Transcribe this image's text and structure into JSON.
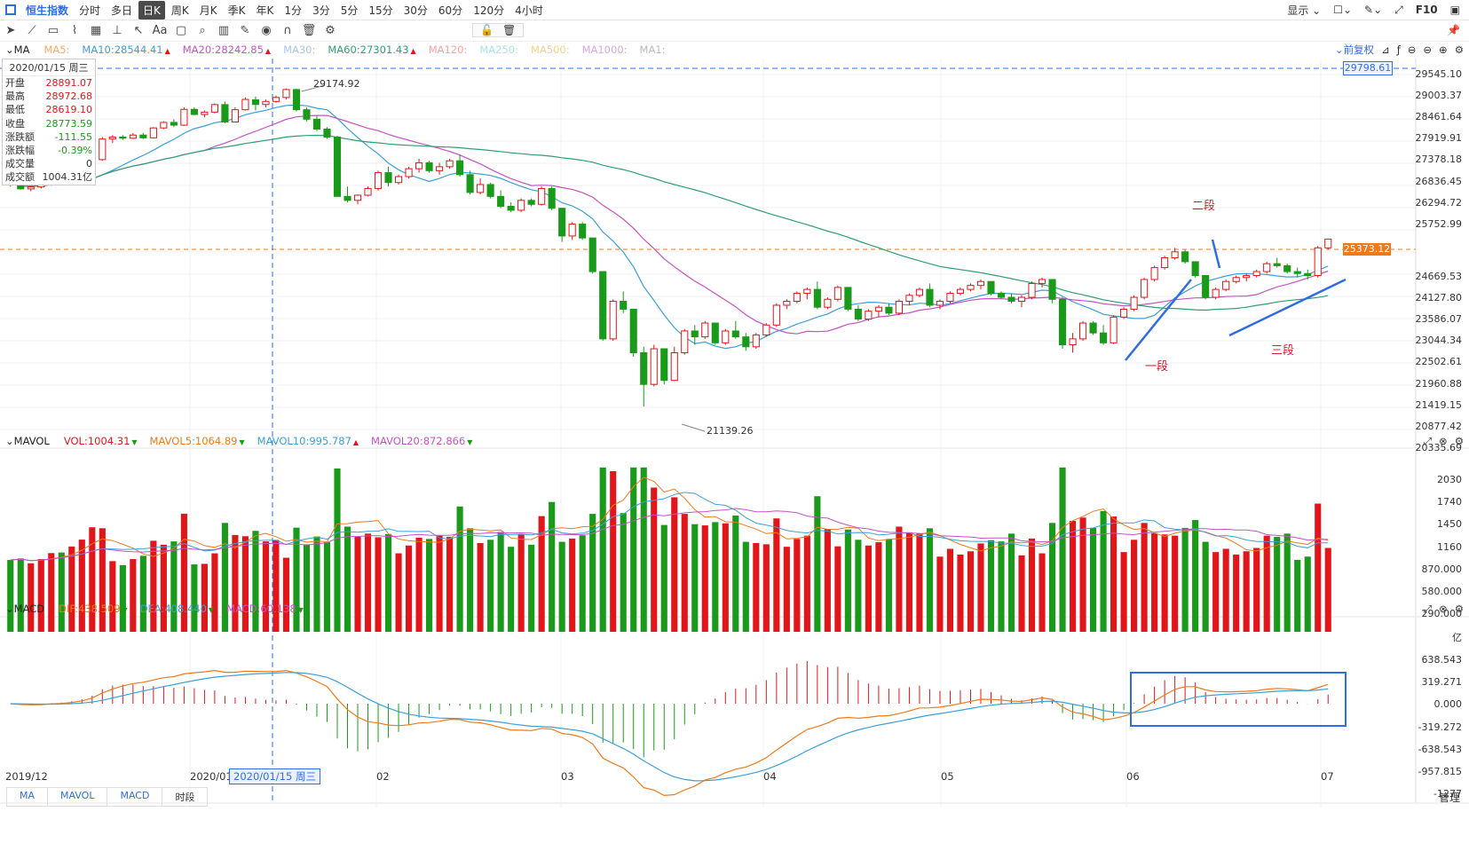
{
  "tabs": [
    {
      "label": "恒生指数",
      "active": false,
      "first": true
    },
    {
      "label": "分时"
    },
    {
      "label": "多日"
    },
    {
      "label": "日K",
      "active": true
    },
    {
      "label": "周K"
    },
    {
      "label": "月K"
    },
    {
      "label": "季K"
    },
    {
      "label": "年K"
    },
    {
      "label": "1分"
    },
    {
      "label": "3分"
    },
    {
      "label": "5分"
    },
    {
      "label": "15分"
    },
    {
      "label": "30分"
    },
    {
      "label": "60分"
    },
    {
      "label": "120分"
    },
    {
      "label": "4小时"
    }
  ],
  "topright": {
    "display": "显示",
    "f10": "F10"
  },
  "ma_legend": {
    "label": "MA",
    "items": [
      {
        "text": "MA5:",
        "color": "#f5a96a"
      },
      {
        "text": "MA10:28544.41",
        "color": "#3aa0d8",
        "arrow": "▲"
      },
      {
        "text": "MA20:28242.85",
        "color": "#c552c5",
        "arrow": "▲"
      },
      {
        "text": "MA30:",
        "color": "#a6c8ee"
      },
      {
        "text": "MA60:27301.43",
        "color": "#2e9e73",
        "arrow": "▲"
      },
      {
        "text": "MA120:",
        "color": "#f5a3a3"
      },
      {
        "text": "MA250:",
        "color": "#a6e6e6"
      },
      {
        "text": "MA500:",
        "color": "#f5d08a"
      },
      {
        "text": "MA1000:",
        "color": "#d9a6e6"
      },
      {
        "text": "MA1:",
        "color": "#bbbbbb"
      }
    ],
    "adjust": "前复权"
  },
  "info": {
    "date": "2020/01/15 周三",
    "rows": [
      {
        "k": "开盘",
        "v": "28891.07",
        "c": "#e0161b"
      },
      {
        "k": "最高",
        "v": "28972.68",
        "c": "#e0161b"
      },
      {
        "k": "最低",
        "v": "28619.10",
        "c": "#e0161b"
      },
      {
        "k": "收盘",
        "v": "28773.59",
        "c": "#1a9a1a"
      },
      {
        "k": "涨跌额",
        "v": "-111.55",
        "c": "#1a9a1a"
      },
      {
        "k": "涨跌幅",
        "v": "-0.39%",
        "c": "#1a9a1a"
      },
      {
        "k": "成交量",
        "v": "0",
        "c": "#333"
      },
      {
        "k": "成交额",
        "v": "1004.31亿",
        "c": "#333"
      }
    ]
  },
  "price_axis": [
    "29545.10",
    "29003.37",
    "28461.64",
    "27919.91",
    "27378.18",
    "26836.45",
    "26294.72",
    "25752.99",
    "24669.53",
    "24127.80",
    "23586.07",
    "23044.34",
    "22502.61",
    "21960.88",
    "21419.15",
    "20877.42",
    "20335.69"
  ],
  "price_tags": {
    "top": "29798.61",
    "current": "25373.12"
  },
  "annotations": {
    "high": "29174.92",
    "low": "21139.26",
    "seg1": "一段",
    "seg2": "二段",
    "seg3": "三段"
  },
  "vol_legend": {
    "label": "MAVOL",
    "items": [
      {
        "text": "VOL:1004.31",
        "color": "#e0161b",
        "arrow": "▼"
      },
      {
        "text": "MAVOL5:1064.89",
        "color": "#f07a1a",
        "arrow": "▼"
      },
      {
        "text": "MAVOL10:995.787",
        "color": "#3aa0d8",
        "arrow": "▲"
      },
      {
        "text": "MAVOL20:872.866",
        "color": "#c552c5",
        "arrow": "▼"
      }
    ]
  },
  "vol_axis": [
    "2030",
    "1740",
    "1450",
    "1160",
    "870.000",
    "580.000",
    "290.000",
    "亿"
  ],
  "macd_legend": {
    "label": "MACD",
    "items": [
      {
        "text": "DIF:438.509",
        "color": "#f07a1a",
        "arrow": "▼"
      },
      {
        "text": "DEA:408.440",
        "color": "#3aa0d8",
        "arrow": "▼"
      },
      {
        "text": "MACD:60.138",
        "color": "#c552c5",
        "arrow": "▼"
      }
    ]
  },
  "macd_axis": [
    "638.543",
    "319.271",
    "0.000",
    "-319.272",
    "-638.543",
    "-957.815",
    "-1277"
  ],
  "x_axis": [
    "2019/12",
    "2020/01",
    "02",
    "03",
    "04",
    "05",
    "06",
    "07"
  ],
  "crosshair_date": "2020/01/15 周三",
  "bottom_tabs": [
    "MA",
    "MAVOL",
    "MACD",
    "时段"
  ],
  "manage": "管理",
  "chart_data": {
    "type": "candlestick",
    "title": "恒生指数 日K",
    "candles_ohlc": [
      [
        26900,
        26950,
        26700,
        26780
      ],
      [
        26780,
        26850,
        26620,
        26640
      ],
      [
        26640,
        26720,
        26580,
        26690
      ],
      [
        26690,
        26800,
        26650,
        26760
      ],
      [
        26760,
        26900,
        26720,
        26880
      ],
      [
        26880,
        26950,
        26800,
        26850
      ],
      [
        26850,
        27000,
        26820,
        26960
      ],
      [
        26960,
        27150,
        26930,
        27100
      ],
      [
        27100,
        27400,
        27080,
        27380
      ],
      [
        27380,
        27950,
        27350,
        27900
      ],
      [
        27900,
        28000,
        27800,
        27950
      ],
      [
        27950,
        28000,
        27880,
        27920
      ],
      [
        27920,
        28050,
        27900,
        28000
      ],
      [
        28000,
        28050,
        27900,
        27930
      ],
      [
        27930,
        28200,
        27920,
        28180
      ],
      [
        28180,
        28350,
        28150,
        28320
      ],
      [
        28320,
        28400,
        28200,
        28250
      ],
      [
        28250,
        28700,
        28230,
        28650
      ],
      [
        28650,
        28700,
        28500,
        28520
      ],
      [
        28520,
        28620,
        28450,
        28580
      ],
      [
        28580,
        28800,
        28550,
        28770
      ],
      [
        28770,
        28850,
        28300,
        28330
      ],
      [
        28330,
        28700,
        28320,
        28640
      ],
      [
        28640,
        28950,
        28620,
        28900
      ],
      [
        28891,
        28972,
        28619,
        28773
      ],
      [
        28773,
        28900,
        28700,
        28850
      ],
      [
        28850,
        29000,
        28820,
        28950
      ],
      [
        28950,
        29174,
        28900,
        29150
      ],
      [
        29150,
        29170,
        28600,
        28640
      ],
      [
        28640,
        28700,
        28350,
        28400
      ],
      [
        28400,
        28500,
        28100,
        28150
      ],
      [
        28150,
        28200,
        27900,
        27950
      ],
      [
        27950,
        27980,
        26900,
        26450
      ],
      [
        26450,
        26700,
        26300,
        26350
      ],
      [
        26350,
        26500,
        26250,
        26480
      ],
      [
        26480,
        26700,
        26450,
        26650
      ],
      [
        26650,
        27100,
        26600,
        27050
      ],
      [
        27050,
        27200,
        26700,
        26800
      ],
      [
        26800,
        27000,
        26750,
        26950
      ],
      [
        26950,
        27200,
        26900,
        27150
      ],
      [
        27150,
        27400,
        27050,
        27300
      ],
      [
        27300,
        27350,
        27050,
        27100
      ],
      [
        27100,
        27300,
        27000,
        27200
      ],
      [
        27200,
        27400,
        27150,
        27350
      ],
      [
        27350,
        27500,
        26950,
        27000
      ],
      [
        27000,
        27100,
        26500,
        26550
      ],
      [
        26550,
        26900,
        26500,
        26750
      ],
      [
        26750,
        26800,
        26400,
        26450
      ],
      [
        26450,
        26600,
        26150,
        26200
      ],
      [
        26200,
        26300,
        26050,
        26100
      ],
      [
        26100,
        26400,
        26050,
        26350
      ],
      [
        26350,
        26400,
        26200,
        26250
      ],
      [
        26250,
        26700,
        26220,
        26650
      ],
      [
        26650,
        26700,
        26100,
        26150
      ],
      [
        26150,
        25750,
        25300,
        25450
      ],
      [
        25450,
        25800,
        25350,
        25750
      ],
      [
        25750,
        25800,
        25350,
        25400
      ],
      [
        25400,
        25150,
        24500,
        24550
      ],
      [
        24550,
        24300,
        22800,
        22850
      ],
      [
        22850,
        23850,
        22800,
        23800
      ],
      [
        23800,
        24050,
        23500,
        23600
      ],
      [
        23600,
        23550,
        22400,
        22500
      ],
      [
        22500,
        22650,
        21139,
        21700
      ],
      [
        21700,
        22700,
        21650,
        22600
      ],
      [
        22600,
        22300,
        21700,
        21800
      ],
      [
        21800,
        22650,
        21780,
        22500
      ],
      [
        22500,
        23100,
        22450,
        23050
      ],
      [
        23050,
        23200,
        22700,
        22900
      ],
      [
        22900,
        23300,
        22850,
        23250
      ],
      [
        23250,
        23150,
        22700,
        22750
      ],
      [
        22750,
        23100,
        22700,
        23050
      ],
      [
        23050,
        23300,
        22850,
        22900
      ],
      [
        22900,
        23000,
        22550,
        22650
      ],
      [
        22650,
        23000,
        22600,
        22950
      ],
      [
        22950,
        23250,
        22900,
        23200
      ],
      [
        23200,
        23750,
        23150,
        23700
      ],
      [
        23700,
        23850,
        23600,
        23800
      ],
      [
        23800,
        24050,
        23750,
        24000
      ],
      [
        24000,
        24150,
        23850,
        24100
      ],
      [
        24100,
        24300,
        23600,
        23650
      ],
      [
        23650,
        23900,
        23600,
        23850
      ],
      [
        23850,
        24200,
        23800,
        24150
      ],
      [
        24150,
        24100,
        23550,
        23600
      ],
      [
        23600,
        23700,
        23300,
        23350
      ],
      [
        23350,
        23600,
        23300,
        23550
      ],
      [
        23550,
        23700,
        23400,
        23650
      ],
      [
        23650,
        23750,
        23450,
        23500
      ],
      [
        23500,
        23850,
        23450,
        23800
      ],
      [
        23800,
        24000,
        23700,
        23950
      ],
      [
        23950,
        24150,
        23900,
        24100
      ],
      [
        24100,
        24250,
        23650,
        23700
      ],
      [
        23700,
        23850,
        23600,
        23800
      ],
      [
        23800,
        24050,
        23750,
        24000
      ],
      [
        24000,
        24150,
        23950,
        24100
      ],
      [
        24100,
        24250,
        24050,
        24200
      ],
      [
        24200,
        24350,
        24100,
        24300
      ],
      [
        24300,
        24200,
        23950,
        24000
      ],
      [
        24000,
        24050,
        23850,
        23900
      ],
      [
        23900,
        24000,
        23750,
        23800
      ],
      [
        23800,
        23950,
        23650,
        23900
      ],
      [
        23900,
        24300,
        23850,
        24250
      ],
      [
        24250,
        24400,
        24150,
        24350
      ],
      [
        24350,
        24300,
        23750,
        23850
      ],
      [
        23850,
        23900,
        22600,
        22700
      ],
      [
        22700,
        23000,
        22500,
        22850
      ],
      [
        22850,
        23300,
        22800,
        23250
      ],
      [
        23250,
        23300,
        22950,
        23000
      ],
      [
        23000,
        23200,
        22700,
        22750
      ],
      [
        22750,
        23450,
        22720,
        23400
      ],
      [
        23400,
        23650,
        23350,
        23600
      ],
      [
        23600,
        23950,
        23550,
        23900
      ],
      [
        23900,
        24400,
        23850,
        24350
      ],
      [
        24350,
        24700,
        24300,
        24650
      ],
      [
        24650,
        24950,
        24600,
        24900
      ],
      [
        24900,
        25150,
        24850,
        25050
      ],
      [
        25050,
        25100,
        24750,
        24800
      ],
      [
        24800,
        24800,
        24400,
        24450
      ],
      [
        24450,
        24300,
        23850,
        23900
      ],
      [
        23900,
        24150,
        23850,
        24100
      ],
      [
        24100,
        24350,
        24050,
        24300
      ],
      [
        24300,
        24450,
        24250,
        24400
      ],
      [
        24400,
        24500,
        24300,
        24450
      ],
      [
        24450,
        24600,
        24400,
        24550
      ],
      [
        24550,
        24800,
        24500,
        24750
      ],
      [
        24750,
        24900,
        24650,
        24700
      ],
      [
        24700,
        24750,
        24500,
        24550
      ],
      [
        24550,
        24650,
        24400,
        24500
      ],
      [
        24500,
        24600,
        24350,
        24450
      ],
      [
        24450,
        25200,
        24400,
        25150
      ],
      [
        25150,
        25373,
        25100,
        25373
      ]
    ],
    "price_range": [
      20335.69,
      29798.61
    ],
    "ma_series": [
      {
        "name": "MA10",
        "color": "#3aa0d8"
      },
      {
        "name": "MA20",
        "color": "#c552c5"
      },
      {
        "name": "MA60",
        "color": "#2e9e73"
      }
    ],
    "volume_range": [
      0,
      2030
    ],
    "macd_range": [
      -1277,
      638.543
    ]
  }
}
